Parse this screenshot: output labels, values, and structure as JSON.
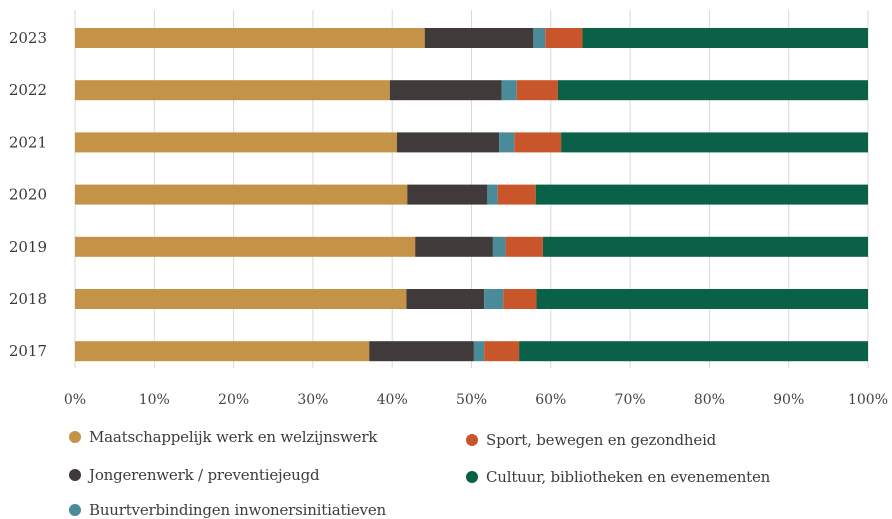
{
  "chart_data": {
    "type": "bar",
    "orientation": "horizontal",
    "stacked": true,
    "percent": true,
    "categories": [
      "2023",
      "2022",
      "2021",
      "2020",
      "2019",
      "2018",
      "2017"
    ],
    "x_ticks": [
      "0%",
      "10%",
      "20%",
      "30%",
      "40%",
      "50%",
      "60%",
      "70%",
      "80%",
      "90%",
      "100%"
    ],
    "xlim": [
      0,
      100
    ],
    "grid": "vertical",
    "legend_position": "bottom",
    "series": [
      {
        "name": "Maatschappelijk werk en welzijnswerk",
        "color": "#c49347",
        "values": [
          44.1,
          39.7,
          40.6,
          41.9,
          42.9,
          41.8,
          37.1
        ]
      },
      {
        "name": "Jongerenwerk / preventiejeugd",
        "color": "#413a3a",
        "values": [
          13.7,
          14.1,
          12.9,
          10.1,
          9.8,
          9.8,
          13.2
        ]
      },
      {
        "name": "Buurtverbindingen inwonersinitiatieven",
        "color": "#4a8b9a",
        "values": [
          1.5,
          1.9,
          1.9,
          1.3,
          1.6,
          2.4,
          1.3
        ]
      },
      {
        "name": "Sport, bewegen en gezondheid",
        "color": "#c9562a",
        "values": [
          4.7,
          5.2,
          5.9,
          4.8,
          4.7,
          4.2,
          4.4
        ]
      },
      {
        "name": "Cultuur, bibliotheken en evenementen",
        "color": "#0a6147",
        "values": [
          36.0,
          39.1,
          38.7,
          41.9,
          41.0,
          41.8,
          44.0
        ]
      }
    ]
  }
}
